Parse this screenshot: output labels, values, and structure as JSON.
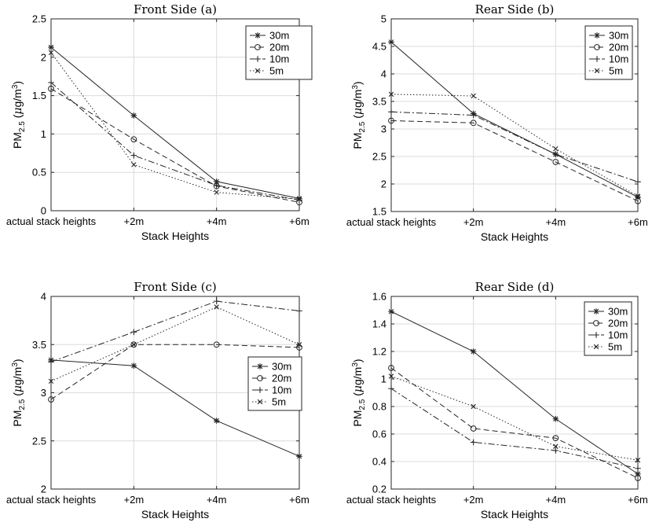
{
  "chart_data": [
    {
      "type": "line",
      "title": "Front Side (a)",
      "xlabel": "Stack Heights",
      "ylabel_main": "PM",
      "ylabel_sub": "2.5",
      "ylabel_unit_open": " (",
      "ylabel_mu": "μ",
      "ylabel_unit": "g/m",
      "ylabel_sup": "3",
      "ylabel_close": ")",
      "categories": [
        "actual stack heights",
        "+2m",
        "+4m",
        "+6m"
      ],
      "ylim": [
        0,
        2.5
      ],
      "yticks": [
        0,
        0.5,
        1,
        1.5,
        2,
        2.5
      ],
      "ytick_labels": [
        "0",
        "0.5",
        "1",
        "1.5",
        "2",
        "2.5"
      ],
      "legend_position": "top-right",
      "series": [
        {
          "name": "30m",
          "values": [
            2.13,
            1.24,
            0.38,
            0.16
          ],
          "marker": "star",
          "dash": "solid"
        },
        {
          "name": "20m",
          "values": [
            1.59,
            0.93,
            0.32,
            0.11
          ],
          "marker": "circle",
          "dash": "dashed"
        },
        {
          "name": "10m",
          "values": [
            1.67,
            0.72,
            0.33,
            0.14
          ],
          "marker": "plus",
          "dash": "dashdot"
        },
        {
          "name": "5m",
          "values": [
            2.06,
            0.6,
            0.24,
            0.15
          ],
          "marker": "x",
          "dash": "dotted"
        }
      ]
    },
    {
      "type": "line",
      "title": "Rear Side (b)",
      "xlabel": "Stack Heights",
      "ylabel_main": "PM",
      "ylabel_sub": "2.5",
      "ylabel_unit_open": " (",
      "ylabel_mu": "μ",
      "ylabel_unit": "g/m",
      "ylabel_sup": "3",
      "ylabel_close": ")",
      "categories": [
        "actual stack heights",
        "+2m",
        "+4m",
        "+6m"
      ],
      "ylim": [
        1.5,
        5
      ],
      "yticks": [
        1.5,
        2,
        2.5,
        3,
        3.5,
        4,
        4.5,
        5
      ],
      "ytick_labels": [
        "1.5",
        "2",
        "2.5",
        "3",
        "3.5",
        "4",
        "4.5",
        "5"
      ],
      "legend_position": "top-right",
      "series": [
        {
          "name": "30m",
          "values": [
            4.58,
            3.28,
            2.54,
            1.76
          ],
          "marker": "star",
          "dash": "solid"
        },
        {
          "name": "20m",
          "values": [
            3.15,
            3.11,
            2.4,
            1.69
          ],
          "marker": "circle",
          "dash": "dashed"
        },
        {
          "name": "10m",
          "values": [
            3.31,
            3.25,
            2.54,
            2.04
          ],
          "marker": "plus",
          "dash": "dashdot"
        },
        {
          "name": "5m",
          "values": [
            3.63,
            3.6,
            2.64,
            1.78
          ],
          "marker": "x",
          "dash": "dotted"
        }
      ]
    },
    {
      "type": "line",
      "title": "Front Side (c)",
      "xlabel": "Stack Heights",
      "ylabel_main": "PM",
      "ylabel_sub": "2.5",
      "ylabel_unit_open": " (",
      "ylabel_mu": "μ",
      "ylabel_unit": "g/m",
      "ylabel_sup": "3",
      "ylabel_close": ")",
      "categories": [
        "actual stack heights",
        "+2m",
        "+4m",
        "+6m"
      ],
      "ylim": [
        2,
        4
      ],
      "yticks": [
        2,
        2.5,
        3,
        3.5,
        4
      ],
      "ytick_labels": [
        "2",
        "2.5",
        "3",
        "3.5",
        "4"
      ],
      "legend_position": "right",
      "series": [
        {
          "name": "30m",
          "values": [
            3.34,
            3.28,
            2.71,
            2.34
          ],
          "marker": "star",
          "dash": "solid"
        },
        {
          "name": "20m",
          "values": [
            2.93,
            3.5,
            3.5,
            3.47
          ],
          "marker": "circle",
          "dash": "dashed"
        },
        {
          "name": "10m",
          "values": [
            3.32,
            3.63,
            3.95,
            3.85
          ],
          "marker": "plus",
          "dash": "dashdot"
        },
        {
          "name": "5m",
          "values": [
            3.12,
            3.5,
            3.89,
            3.5
          ],
          "marker": "x",
          "dash": "dotted"
        }
      ]
    },
    {
      "type": "line",
      "title": "Rear Side (d)",
      "xlabel": "Stack Heights",
      "ylabel_main": "PM",
      "ylabel_sub": "2.5",
      "ylabel_unit_open": " (",
      "ylabel_mu": "μ",
      "ylabel_unit": "g/m",
      "ylabel_sup": "3",
      "ylabel_close": ")",
      "categories": [
        "actual stack heights",
        "+2m",
        "+4m",
        "+6m"
      ],
      "ylim": [
        0.2,
        1.6
      ],
      "yticks": [
        0.2,
        0.4,
        0.6,
        0.8,
        1,
        1.2,
        1.4,
        1.6
      ],
      "ytick_labels": [
        "0.2",
        "0.4",
        "0.6",
        "0.8",
        "1",
        "1.2",
        "1.4",
        "1.6"
      ],
      "legend_position": "top-right",
      "series": [
        {
          "name": "30m",
          "values": [
            1.49,
            1.2,
            0.71,
            0.31
          ],
          "marker": "star",
          "dash": "solid"
        },
        {
          "name": "20m",
          "values": [
            1.08,
            0.64,
            0.57,
            0.28
          ],
          "marker": "circle",
          "dash": "dashed"
        },
        {
          "name": "10m",
          "values": [
            0.93,
            0.54,
            0.48,
            0.35
          ],
          "marker": "plus",
          "dash": "dashdot"
        },
        {
          "name": "5m",
          "values": [
            1.02,
            0.8,
            0.51,
            0.41
          ],
          "marker": "x",
          "dash": "dotted"
        }
      ]
    }
  ]
}
